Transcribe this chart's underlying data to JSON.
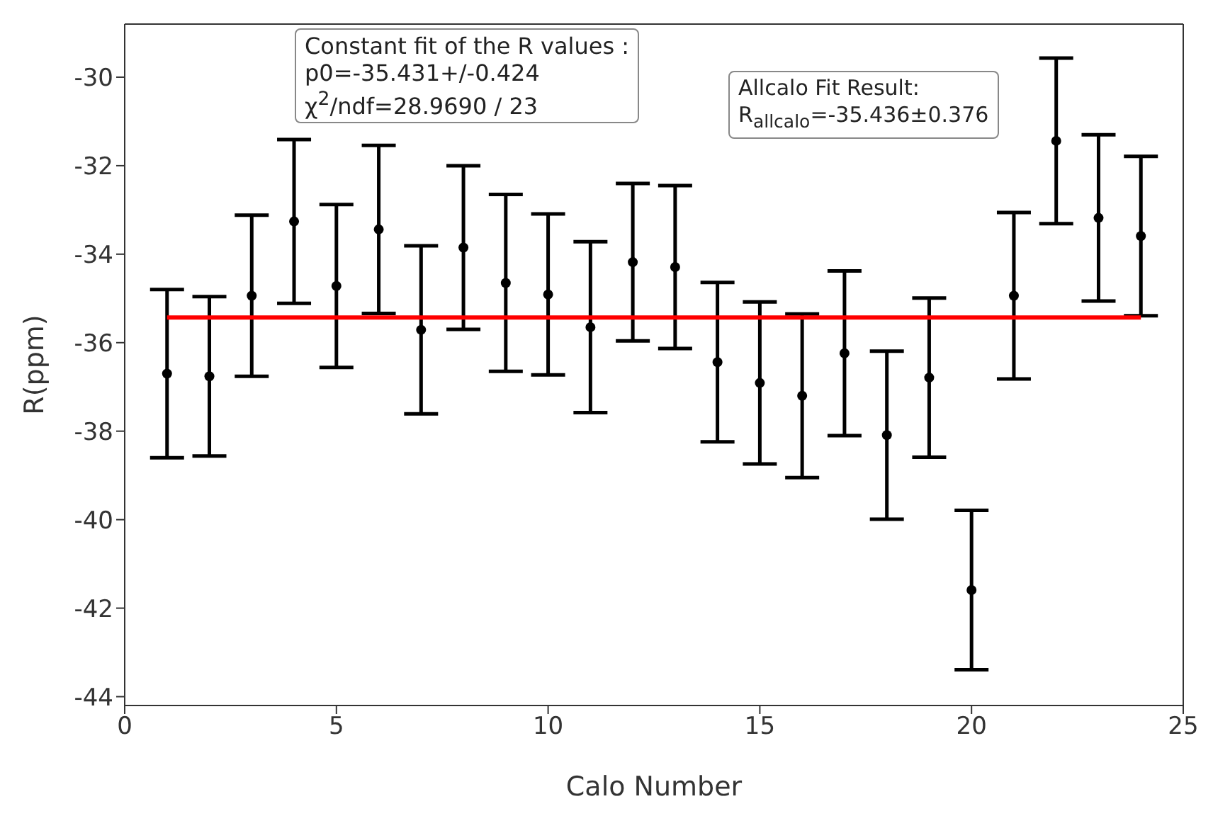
{
  "chart_data": {
    "type": "scatter",
    "xlabel": "Calo Number",
    "ylabel": "R(ppm)",
    "xlim": [
      0,
      25
    ],
    "xticks": [
      0,
      5,
      10,
      15,
      20,
      25
    ],
    "ylim": [
      -44.2,
      -28.8
    ],
    "yticks": [
      -44,
      -42,
      -40,
      -38,
      -36,
      -34,
      -32,
      -30
    ],
    "legend": false,
    "marker": "circle",
    "annotations": [
      "Constant fit of the R values :\np0=-35.431+/-0.424\nχ$^{2}$/ndf=28.9690 / 23",
      "Allcalo Fit Result:\nR$_{allcalo}$=-35.436±0.376"
    ],
    "series": [
      {
        "color": "#000000",
        "x": [
          1,
          2,
          3,
          4,
          5,
          6,
          7,
          8,
          9,
          10,
          11,
          12,
          13,
          14,
          15,
          16,
          17,
          18,
          19,
          20,
          21,
          22,
          23,
          24
        ],
        "values": [
          -36.7,
          -36.76,
          -34.94,
          -33.26,
          -34.72,
          -33.44,
          -35.71,
          -33.85,
          -34.65,
          -34.91,
          -35.65,
          -34.18,
          -34.29,
          -36.44,
          -36.91,
          -37.2,
          -36.24,
          -38.09,
          -36.79,
          -41.59,
          -34.94,
          -31.44,
          -33.18,
          -33.59
        ],
        "errors": [
          1.9,
          1.8,
          1.82,
          1.85,
          1.84,
          1.9,
          1.9,
          1.85,
          2.0,
          1.82,
          1.93,
          1.78,
          1.84,
          1.8,
          1.83,
          1.85,
          1.86,
          1.9,
          1.8,
          1.8,
          1.88,
          1.87,
          1.88,
          1.8
        ]
      },
      {
        "type": "line",
        "color": "#ff0000",
        "marker": "none",
        "x": [
          1,
          24
        ],
        "values": [
          -35.43,
          -35.43
        ]
      }
    ]
  }
}
